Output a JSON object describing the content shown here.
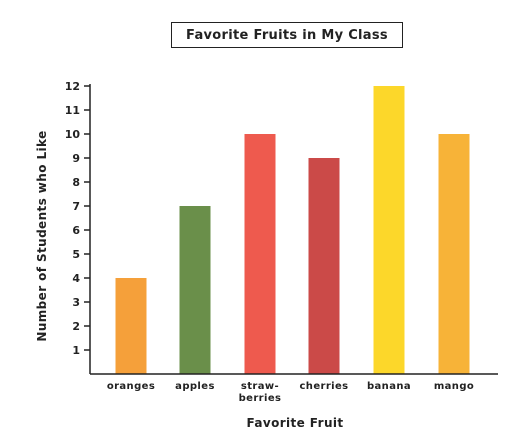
{
  "chart_data": {
    "type": "bar",
    "title": "Favorite Fruits in My Class",
    "xlabel": "Favorite Fruit",
    "ylabel": "Number of Students who Like",
    "categories": [
      "oranges",
      "apples",
      "straw-\nberries",
      "cherries",
      "banana",
      "mango"
    ],
    "values": [
      4,
      7,
      10,
      9,
      12,
      10
    ],
    "colors": [
      "#F5A03A",
      "#6A8F4A",
      "#EE5A4E",
      "#CB4A48",
      "#FCD72A",
      "#F7B338"
    ],
    "yticks": [
      1,
      2,
      3,
      4,
      5,
      6,
      7,
      8,
      9,
      10,
      11,
      12
    ],
    "ylim": [
      0,
      12
    ],
    "grid": false,
    "legend": "none"
  }
}
